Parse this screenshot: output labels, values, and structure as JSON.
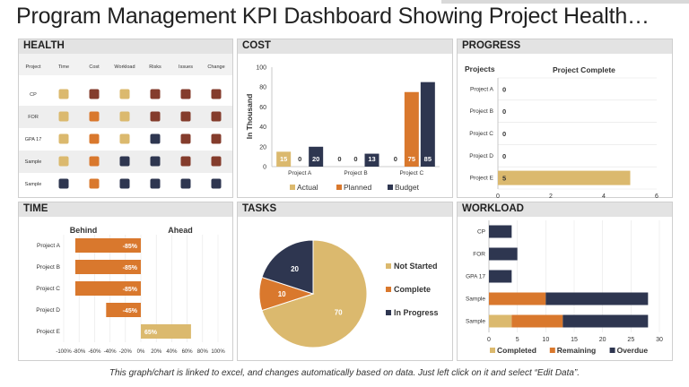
{
  "page": {
    "title": "Program Management KPI Dashboard Showing Project Health…",
    "footer": "This graph/chart is linked to excel, and changes automatically based on data. Just left click on it and select “Edit Data”."
  },
  "colors": {
    "tan": "#dbb96e",
    "orange": "#d9782d",
    "brown": "#843c2c",
    "navy": "#2e3650",
    "grid": "#d9d9d9"
  },
  "chart_data": [
    {
      "id": "health",
      "type": "table",
      "title": "HEALTH",
      "columns": [
        "Project",
        "Time",
        "Cost",
        "Workload",
        "Risks",
        "Issues",
        "Change"
      ],
      "rows": [
        {
          "label": "CP",
          "status": [
            "tan",
            "brown",
            "tan",
            "brown",
            "brown",
            "brown"
          ]
        },
        {
          "label": "FOR",
          "status": [
            "tan",
            "orange",
            "tan",
            "brown",
            "brown",
            "brown"
          ]
        },
        {
          "label": "GPA 17",
          "status": [
            "tan",
            "orange",
            "tan",
            "navy",
            "brown",
            "brown"
          ]
        },
        {
          "label": "Sample",
          "status": [
            "tan",
            "orange",
            "navy",
            "navy",
            "brown",
            "brown"
          ]
        },
        {
          "label": "Sample",
          "status": [
            "navy",
            "orange",
            "navy",
            "navy",
            "navy",
            "navy"
          ]
        }
      ]
    },
    {
      "id": "cost",
      "type": "bar",
      "title": "COST",
      "ylabel": "In Thousand",
      "ylim": [
        0,
        100
      ],
      "yticks": [
        0,
        20,
        40,
        60,
        80,
        100
      ],
      "categories": [
        "Project A",
        "Project B",
        "Project C"
      ],
      "series": [
        {
          "name": "Actual",
          "color": "tan",
          "values": [
            15,
            0,
            0
          ]
        },
        {
          "name": "Planned",
          "color": "orange",
          "values": [
            0,
            0,
            75
          ]
        },
        {
          "name": "Budget",
          "color": "navy",
          "values": [
            20,
            13,
            85
          ]
        }
      ]
    },
    {
      "id": "progress",
      "type": "bar",
      "orientation": "horizontal",
      "title": "PROGRESS",
      "col_header_projects": "Projects",
      "col_header_complete": "Project Complete",
      "categories": [
        "Project A",
        "Project B",
        "Project C",
        "Project D",
        "Project E"
      ],
      "values": [
        0,
        0,
        0,
        0,
        5
      ],
      "xlim": [
        0,
        6
      ],
      "xticks": [
        0,
        2,
        4,
        6
      ]
    },
    {
      "id": "time",
      "type": "bar",
      "orientation": "horizontal",
      "title": "TIME",
      "label_behind": "Behind",
      "label_ahead": "Ahead",
      "categories": [
        "Project A",
        "Project B",
        "Project C",
        "Project D",
        "Project E"
      ],
      "values": [
        -85,
        -85,
        -85,
        -45,
        65
      ],
      "value_labels": [
        "-85%",
        "-85%",
        "-85%",
        "-45%",
        "65%"
      ],
      "xlim": [
        -100,
        100
      ],
      "xticks": [
        "-100%",
        "-80%",
        "-60%",
        "-40%",
        "-20%",
        "0%",
        "20%",
        "40%",
        "60%",
        "80%",
        "100%"
      ]
    },
    {
      "id": "tasks",
      "type": "pie",
      "title": "TASKS",
      "slices": [
        {
          "name": "Not Started",
          "value": 70,
          "color": "tan"
        },
        {
          "name": "Complete",
          "value": 10,
          "color": "orange"
        },
        {
          "name": "In Progress",
          "value": 20,
          "color": "navy"
        }
      ]
    },
    {
      "id": "workload",
      "type": "bar",
      "orientation": "horizontal",
      "stacked": true,
      "title": "WORKLOAD",
      "categories": [
        "CP",
        "FOR",
        "GPA 17",
        "Sample",
        "Sample"
      ],
      "series": [
        {
          "name": "Completed",
          "color": "tan",
          "values": [
            0,
            0,
            0,
            0,
            4
          ]
        },
        {
          "name": "Remaining",
          "color": "orange",
          "values": [
            0,
            0,
            0,
            10,
            9
          ]
        },
        {
          "name": "Overdue",
          "color": "navy",
          "values": [
            4,
            5,
            4,
            18,
            15
          ]
        }
      ],
      "xlim": [
        0,
        30
      ],
      "xticks": [
        0,
        5,
        10,
        15,
        20,
        25,
        30
      ]
    }
  ]
}
